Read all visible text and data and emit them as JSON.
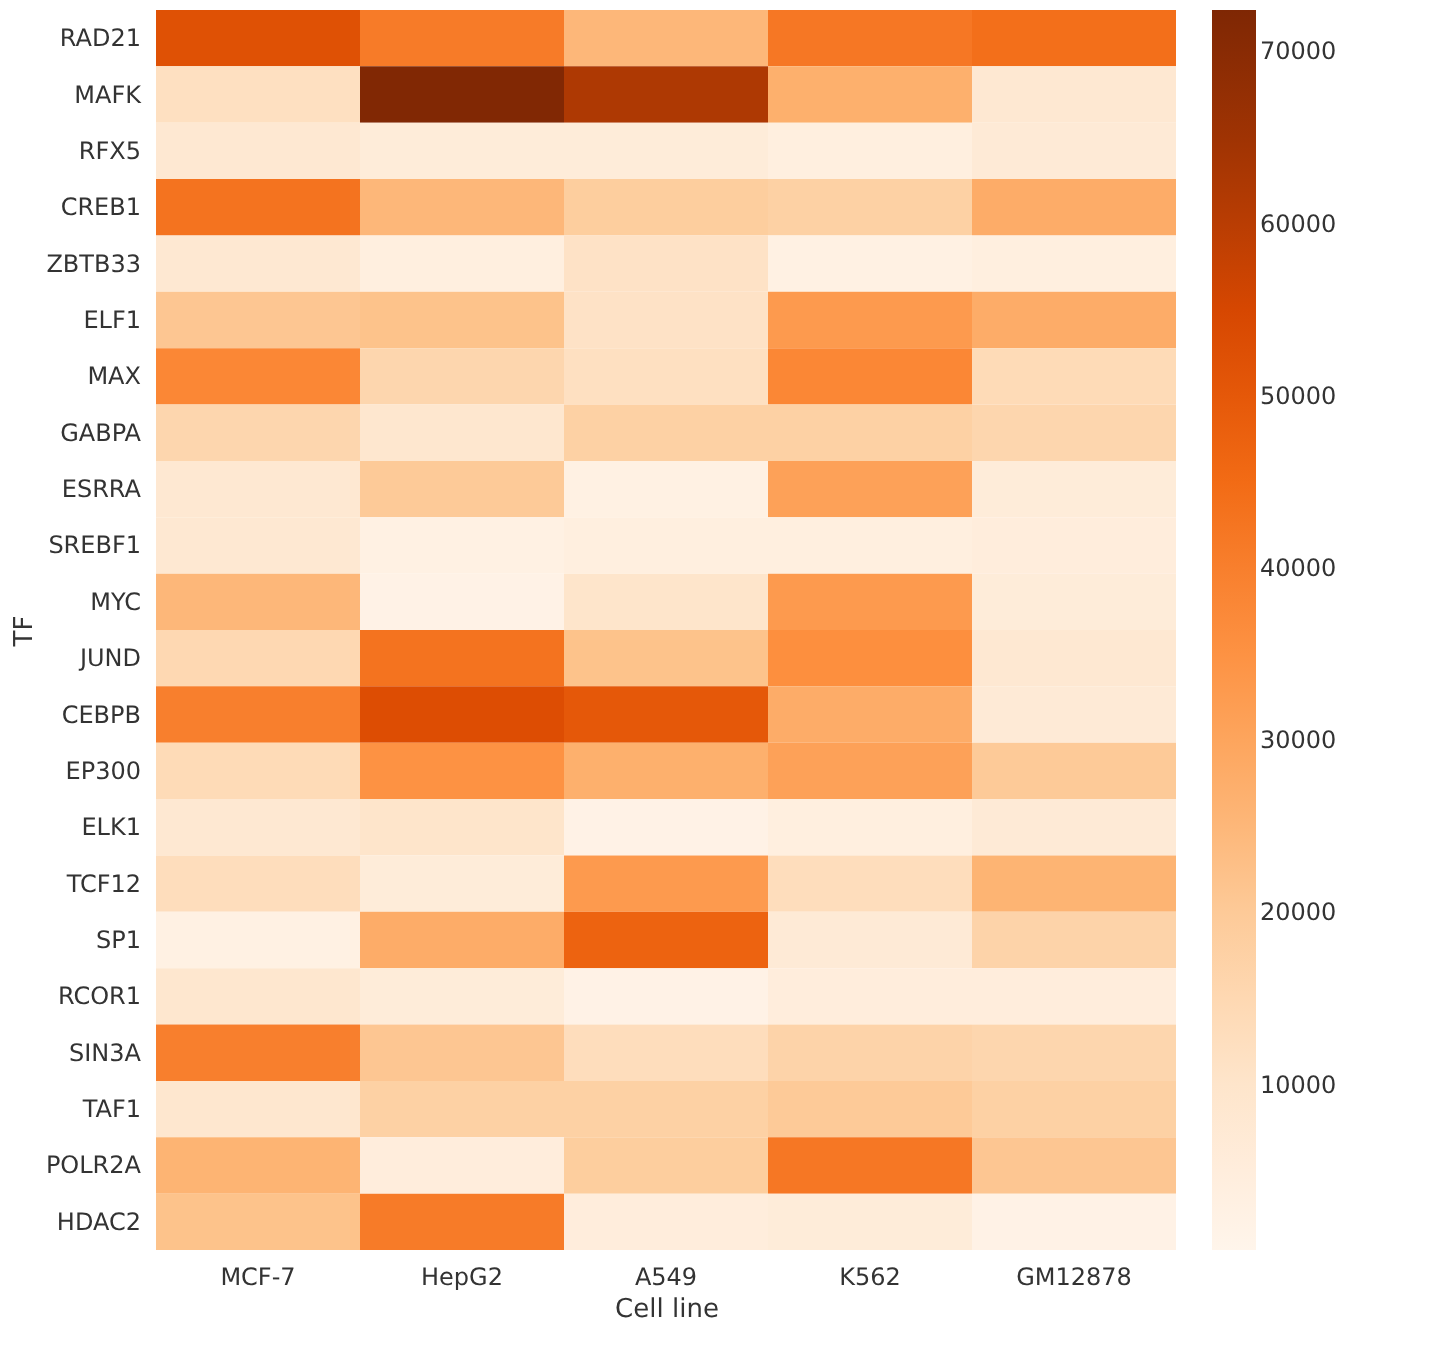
{
  "chart_data": {
    "type": "heatmap",
    "xlabel": "Cell line",
    "ylabel": "TF",
    "categories": [
      "MCF-7",
      "HepG2",
      "A549",
      "K562",
      "GM12878"
    ],
    "y_categories": [
      "RAD21",
      "MAFK",
      "RFX5",
      "CREB1",
      "ZBTB33",
      "ELF1",
      "MAX",
      "GABPA",
      "ESRRA",
      "SREBF1",
      "MYC",
      "JUND",
      "CEBPB",
      "EP300",
      "ELK1",
      "TCF12",
      "SP1",
      "RCOR1",
      "SIN3A",
      "TAF1",
      "POLR2A",
      "HDAC2"
    ],
    "cells": [
      [
        52000,
        41000,
        25000,
        42000,
        44000
      ],
      [
        12000,
        72000,
        62000,
        27000,
        8000
      ],
      [
        8000,
        6000,
        6000,
        4000,
        7000
      ],
      [
        43000,
        25000,
        19000,
        18000,
        28000
      ],
      [
        8000,
        4000,
        11000,
        3000,
        4000
      ],
      [
        21000,
        22000,
        11000,
        33000,
        28000
      ],
      [
        38000,
        16000,
        12000,
        38000,
        14000
      ],
      [
        16000,
        9000,
        18000,
        18000,
        16000
      ],
      [
        8000,
        20000,
        3000,
        31000,
        6000
      ],
      [
        8000,
        3000,
        4000,
        4000,
        5000
      ],
      [
        25000,
        2000,
        10000,
        33000,
        6000
      ],
      [
        15000,
        43000,
        22000,
        36000,
        8000
      ],
      [
        40000,
        53000,
        50000,
        28000,
        7000
      ],
      [
        14000,
        35000,
        27000,
        31000,
        20000
      ],
      [
        8000,
        10000,
        2000,
        4000,
        7000
      ],
      [
        13000,
        6000,
        33000,
        13000,
        26000
      ],
      [
        3000,
        28000,
        47000,
        7000,
        17000
      ],
      [
        9000,
        6000,
        2000,
        5000,
        5000
      ],
      [
        40000,
        21000,
        13000,
        17000,
        16000
      ],
      [
        9000,
        18000,
        18000,
        20000,
        18000
      ],
      [
        26000,
        5000,
        19000,
        42000,
        21000
      ],
      [
        22000,
        41000,
        5000,
        6000,
        2000
      ]
    ],
    "clim": [
      400,
      72400
    ],
    "cticks": [
      10000,
      20000,
      30000,
      40000,
      50000,
      60000,
      70000
    ]
  }
}
